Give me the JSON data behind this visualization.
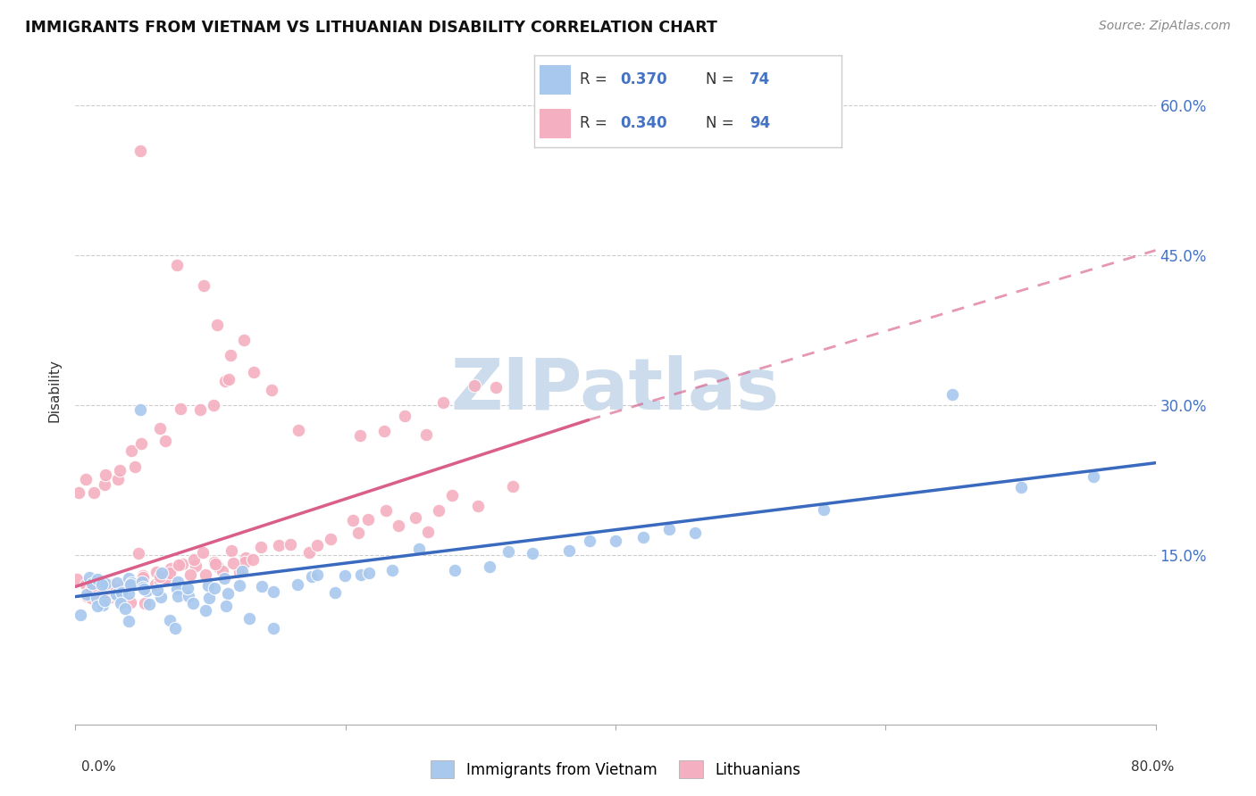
{
  "title": "IMMIGRANTS FROM VIETNAM VS LITHUANIAN DISABILITY CORRELATION CHART",
  "source": "Source: ZipAtlas.com",
  "ylabel": "Disability",
  "ytick_labels": [
    "15.0%",
    "30.0%",
    "45.0%",
    "60.0%"
  ],
  "ytick_values": [
    0.15,
    0.3,
    0.45,
    0.6
  ],
  "xlim": [
    0.0,
    0.8
  ],
  "ylim": [
    -0.02,
    0.65
  ],
  "series1_color": "#a8c8ee",
  "series2_color": "#f4afc0",
  "trendline1_color": "#3a6abf",
  "trendline2_color": "#d95f8a",
  "trendline1_start_y": 0.108,
  "trendline1_end_y": 0.242,
  "trendline2_start_y": 0.118,
  "trendline2_end_y": 0.285,
  "trendline2_dash_end_y": 0.455,
  "trendline2_solid_end_x": 0.38,
  "watermark": "ZIPatlas",
  "watermark_color": "#ccdcec",
  "n1": 74,
  "n2": 94,
  "R1": 0.37,
  "R2": 0.34,
  "legend_r1": "0.370",
  "legend_n1": "74",
  "legend_r2": "0.340",
  "legend_n2": "94",
  "scatter1_x": [
    0.005,
    0.01,
    0.012,
    0.015,
    0.018,
    0.02,
    0.022,
    0.025,
    0.028,
    0.03,
    0.032,
    0.035,
    0.038,
    0.04,
    0.042,
    0.045,
    0.048,
    0.05,
    0.052,
    0.055,
    0.058,
    0.06,
    0.065,
    0.07,
    0.075,
    0.08,
    0.085,
    0.09,
    0.095,
    0.1,
    0.105,
    0.11,
    0.115,
    0.12,
    0.13,
    0.14,
    0.15,
    0.16,
    0.17,
    0.18,
    0.19,
    0.2,
    0.21,
    0.22,
    0.24,
    0.26,
    0.28,
    0.3,
    0.32,
    0.34,
    0.36,
    0.38,
    0.4,
    0.42,
    0.44,
    0.46,
    0.008,
    0.015,
    0.022,
    0.03,
    0.038,
    0.045,
    0.055,
    0.065,
    0.075,
    0.09,
    0.1,
    0.115,
    0.13,
    0.15,
    0.55,
    0.65,
    0.7,
    0.75
  ],
  "scatter1_y": [
    0.115,
    0.112,
    0.118,
    0.12,
    0.108,
    0.114,
    0.116,
    0.113,
    0.119,
    0.115,
    0.112,
    0.117,
    0.114,
    0.116,
    0.11,
    0.115,
    0.118,
    0.112,
    0.114,
    0.116,
    0.113,
    0.115,
    0.114,
    0.116,
    0.118,
    0.112,
    0.115,
    0.114,
    0.116,
    0.118,
    0.113,
    0.116,
    0.115,
    0.118,
    0.12,
    0.122,
    0.115,
    0.118,
    0.12,
    0.125,
    0.122,
    0.128,
    0.13,
    0.135,
    0.14,
    0.142,
    0.138,
    0.145,
    0.148,
    0.15,
    0.155,
    0.158,
    0.16,
    0.165,
    0.168,
    0.17,
    0.095,
    0.102,
    0.108,
    0.1,
    0.105,
    0.098,
    0.1,
    0.095,
    0.092,
    0.098,
    0.1,
    0.095,
    0.09,
    0.085,
    0.205,
    0.315,
    0.22,
    0.235
  ],
  "scatter2_x": [
    0.003,
    0.006,
    0.008,
    0.01,
    0.012,
    0.015,
    0.018,
    0.02,
    0.022,
    0.025,
    0.028,
    0.03,
    0.032,
    0.035,
    0.038,
    0.04,
    0.042,
    0.045,
    0.048,
    0.05,
    0.053,
    0.056,
    0.06,
    0.063,
    0.067,
    0.07,
    0.075,
    0.08,
    0.085,
    0.09,
    0.095,
    0.1,
    0.105,
    0.11,
    0.115,
    0.12,
    0.125,
    0.13,
    0.14,
    0.15,
    0.16,
    0.17,
    0.18,
    0.19,
    0.2,
    0.21,
    0.22,
    0.23,
    0.24,
    0.25,
    0.26,
    0.27,
    0.28,
    0.3,
    0.32,
    0.008,
    0.012,
    0.018,
    0.025,
    0.032,
    0.04,
    0.048,
    0.056,
    0.065,
    0.075,
    0.085,
    0.095,
    0.105,
    0.115,
    0.125,
    0.005,
    0.01,
    0.015,
    0.02,
    0.025,
    0.03,
    0.035,
    0.04,
    0.045,
    0.05,
    0.06,
    0.07,
    0.08,
    0.09,
    0.1,
    0.11,
    0.12,
    0.13,
    0.21,
    0.23,
    0.25,
    0.27,
    0.29,
    0.31
  ],
  "scatter2_y": [
    0.112,
    0.115,
    0.118,
    0.113,
    0.116,
    0.12,
    0.114,
    0.117,
    0.115,
    0.119,
    0.113,
    0.116,
    0.118,
    0.115,
    0.12,
    0.118,
    0.122,
    0.125,
    0.12,
    0.118,
    0.122,
    0.125,
    0.128,
    0.13,
    0.125,
    0.128,
    0.13,
    0.132,
    0.135,
    0.138,
    0.14,
    0.143,
    0.138,
    0.142,
    0.145,
    0.148,
    0.15,
    0.152,
    0.155,
    0.158,
    0.162,
    0.165,
    0.168,
    0.172,
    0.175,
    0.178,
    0.18,
    0.185,
    0.188,
    0.192,
    0.195,
    0.198,
    0.202,
    0.208,
    0.215,
    0.108,
    0.112,
    0.115,
    0.118,
    0.122,
    0.125,
    0.128,
    0.132,
    0.135,
    0.138,
    0.142,
    0.145,
    0.148,
    0.152,
    0.155,
    0.205,
    0.215,
    0.22,
    0.225,
    0.23,
    0.235,
    0.24,
    0.245,
    0.25,
    0.258,
    0.265,
    0.275,
    0.285,
    0.295,
    0.305,
    0.315,
    0.325,
    0.335,
    0.275,
    0.282,
    0.295,
    0.305,
    0.312,
    0.32
  ]
}
